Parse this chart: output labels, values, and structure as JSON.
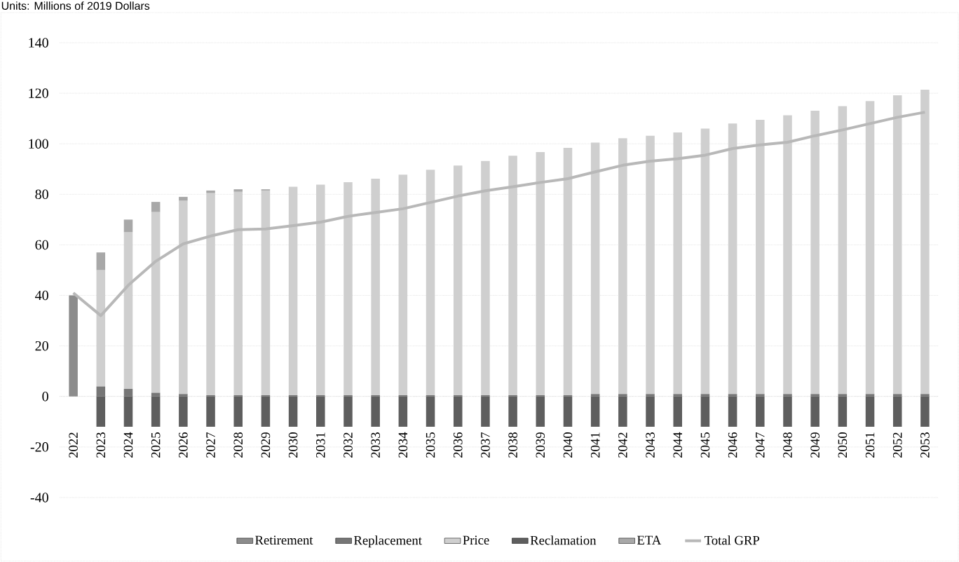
{
  "chart_data": {
    "type": "bar",
    "title": "Units: Millions of 2019 Dollars",
    "categories": [
      "2022",
      "2023",
      "2024",
      "2025",
      "2026",
      "2027",
      "2028",
      "2029",
      "2030",
      "2031",
      "2032",
      "2033",
      "2034",
      "2035",
      "2036",
      "2037",
      "2038",
      "2039",
      "2040",
      "2041",
      "2042",
      "2043",
      "2044",
      "2045",
      "2046",
      "2047",
      "2048",
      "2049",
      "2050",
      "2051",
      "2052",
      "2053"
    ],
    "stacked": true,
    "ylim": [
      -40,
      140
    ],
    "yticks": [
      -40,
      -20,
      0,
      20,
      40,
      60,
      80,
      100,
      120,
      140
    ],
    "grid": "y",
    "legend": "bottom",
    "series": [
      {
        "name": "Retirement",
        "color": "#8c8c8c",
        "values": [
          40,
          null,
          null,
          null,
          null,
          null,
          null,
          null,
          null,
          null,
          null,
          null,
          null,
          null,
          null,
          null,
          null,
          null,
          null,
          null,
          null,
          null,
          null,
          null,
          null,
          null,
          null,
          null,
          null,
          null,
          null,
          null
        ]
      },
      {
        "name": "Replacement",
        "color": "#767676",
        "values": [
          null,
          4,
          3,
          1.5,
          1,
          0.5,
          0.5,
          0.5,
          0.5,
          0.5,
          0.5,
          0.5,
          0.5,
          0.5,
          0.5,
          0.5,
          0.5,
          0.5,
          0.5,
          1,
          1,
          1,
          1,
          1,
          1,
          1,
          1,
          1,
          1,
          1,
          1,
          1
        ]
      },
      {
        "name": "Price",
        "color": "#cfcfcf",
        "values": [
          null,
          46,
          62,
          71.5,
          76.5,
          80,
          80.5,
          81,
          82.5,
          83.3,
          84.3,
          85.7,
          87.3,
          89.2,
          90.9,
          92.7,
          94.8,
          96.2,
          97.9,
          99.5,
          101.2,
          102.2,
          103.5,
          105,
          107,
          108.5,
          110.3,
          112.1,
          113.9,
          115.9,
          118.2,
          120.4
        ]
      },
      {
        "name": "Reclamation",
        "color": "#5e5e5e",
        "values": [
          null,
          -12,
          -12,
          -12,
          -12,
          -12,
          -12,
          -12,
          -12,
          -12,
          -12,
          -12,
          -12,
          -12,
          -12,
          -12,
          -12,
          -12,
          -12,
          -12,
          -12,
          -12,
          -12,
          -12,
          -12,
          -12,
          -12,
          -12,
          -12,
          -12,
          -12,
          -12
        ]
      },
      {
        "name": "ETA",
        "color": "#a8a8a8",
        "values": [
          null,
          7,
          5,
          4,
          1.5,
          1,
          1,
          0.5,
          null,
          null,
          null,
          null,
          null,
          null,
          null,
          null,
          null,
          null,
          null,
          null,
          null,
          null,
          null,
          null,
          null,
          null,
          null,
          null,
          null,
          null,
          null,
          null
        ]
      },
      {
        "name": "Total GRP",
        "type": "line",
        "color": "#b8b8b8",
        "values": [
          41,
          32,
          44,
          53.5,
          60.4,
          63.5,
          66,
          66.3,
          67.6,
          69,
          71.3,
          72.8,
          74.3,
          76.8,
          79.3,
          81.4,
          83,
          84.7,
          86.2,
          88.9,
          91.5,
          93.1,
          94.1,
          95.5,
          98.1,
          99.6,
          100.6,
          103.2,
          105.5,
          108,
          110.5,
          112.5
        ]
      }
    ]
  }
}
